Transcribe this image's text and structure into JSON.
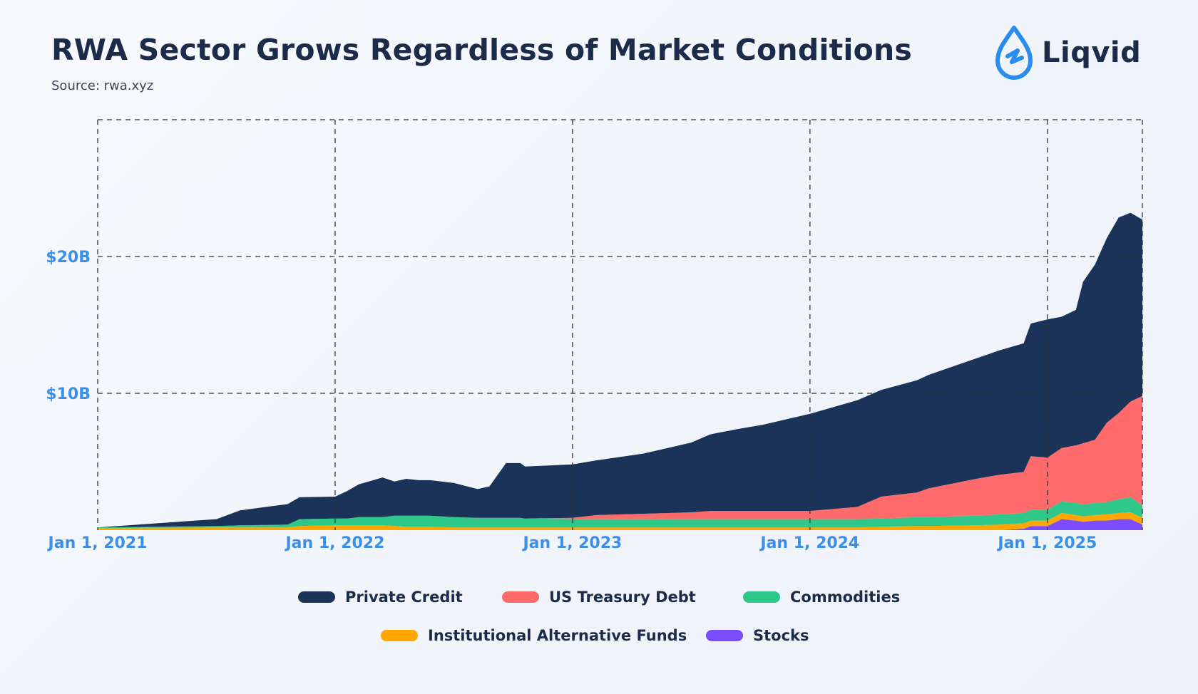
{
  "header": {
    "title": "RWA Sector Grows Regardless of Market Conditions",
    "subtitle": "Source: rwa.xyz",
    "brand": "Liqvid"
  },
  "colors": {
    "background": "#f4f7fb",
    "title": "#1c2b4a",
    "axis_label": "#3b8fe8",
    "brand_blue": "#2b8cf0",
    "grid": "#333333"
  },
  "icons": {
    "logo": "droplet-icon"
  },
  "chart_data": {
    "type": "area",
    "stacked": true,
    "title": "RWA Sector Grows Regardless of Market Conditions",
    "xlabel": "",
    "ylabel": "",
    "grid": true,
    "legend_placement": "bottom",
    "x_ticks": [
      "Jan 1, 2021",
      "Jan 1, 2022",
      "Jan 1, 2023",
      "Jan 1, 2024",
      "Jan 1, 2025"
    ],
    "y_ticks": [
      {
        "value": 10,
        "label": "$10B"
      },
      {
        "value": 20,
        "label": "$20B"
      }
    ],
    "xlim": [
      2021.0,
      2025.4
    ],
    "ylim": [
      0,
      30
    ],
    "x_unit": "year",
    "y_unit": "billion USD",
    "x": [
      2021.0,
      2021.5,
      2021.6,
      2021.8,
      2021.85,
      2022.0,
      2022.05,
      2022.1,
      2022.2,
      2022.25,
      2022.3,
      2022.35,
      2022.4,
      2022.5,
      2022.6,
      2022.65,
      2022.72,
      2022.78,
      2022.8,
      2023.0,
      2023.1,
      2023.3,
      2023.5,
      2023.58,
      2023.7,
      2023.8,
      2024.0,
      2024.2,
      2024.3,
      2024.45,
      2024.5,
      2024.7,
      2024.8,
      2024.9,
      2024.93,
      2025.0,
      2025.06,
      2025.12,
      2025.15,
      2025.2,
      2025.25,
      2025.3,
      2025.35,
      2025.4
    ],
    "series": [
      {
        "name": "Stocks",
        "color": "#7c4dff",
        "values": [
          0,
          0,
          0,
          0,
          0,
          0,
          0,
          0,
          0,
          0,
          0,
          0,
          0,
          0,
          0,
          0,
          0,
          0,
          0,
          0,
          0,
          0,
          0,
          0,
          0,
          0,
          0,
          0,
          0,
          0,
          0,
          0,
          0,
          0.1,
          0.3,
          0.3,
          0.8,
          0.7,
          0.6,
          0.7,
          0.7,
          0.8,
          0.8,
          0.4
        ]
      },
      {
        "name": "Institutional Alternative Funds",
        "color": "#ffa600",
        "values": [
          0.15,
          0.2,
          0.2,
          0.2,
          0.3,
          0.35,
          0.35,
          0.35,
          0.35,
          0.3,
          0.25,
          0.25,
          0.25,
          0.2,
          0.2,
          0.2,
          0.2,
          0.2,
          0.2,
          0.2,
          0.2,
          0.2,
          0.2,
          0.2,
          0.2,
          0.2,
          0.2,
          0.2,
          0.25,
          0.3,
          0.3,
          0.35,
          0.4,
          0.4,
          0.4,
          0.4,
          0.45,
          0.4,
          0.4,
          0.4,
          0.45,
          0.45,
          0.5,
          0.5
        ]
      },
      {
        "name": "Commodities",
        "color": "#2ec98a",
        "values": [
          0.05,
          0.1,
          0.15,
          0.2,
          0.5,
          0.5,
          0.5,
          0.6,
          0.6,
          0.75,
          0.8,
          0.8,
          0.8,
          0.75,
          0.7,
          0.7,
          0.7,
          0.7,
          0.65,
          0.6,
          0.6,
          0.6,
          0.6,
          0.6,
          0.6,
          0.6,
          0.6,
          0.6,
          0.6,
          0.65,
          0.65,
          0.7,
          0.75,
          0.75,
          0.8,
          0.8,
          0.85,
          0.9,
          0.85,
          0.9,
          0.9,
          1.0,
          1.1,
          0.9
        ]
      },
      {
        "name": "US Treasury Debt",
        "color": "#ff6b6b",
        "values": [
          0,
          0,
          0,
          0,
          0,
          0,
          0,
          0,
          0,
          0,
          0,
          0,
          0,
          0,
          0,
          0,
          0,
          0,
          0,
          0.1,
          0.3,
          0.4,
          0.5,
          0.6,
          0.6,
          0.6,
          0.6,
          0.9,
          1.6,
          1.8,
          2.1,
          2.7,
          2.9,
          3.0,
          3.9,
          3.8,
          3.9,
          4.2,
          4.5,
          4.6,
          5.8,
          6.3,
          7.0,
          8.0
        ]
      },
      {
        "name": "Private Credit",
        "color": "#1b3358",
        "values": [
          0.0,
          0.5,
          1.1,
          1.5,
          1.6,
          1.6,
          2.0,
          2.4,
          2.9,
          2.5,
          2.7,
          2.6,
          2.6,
          2.5,
          2.1,
          2.3,
          4.0,
          4.0,
          3.8,
          3.9,
          4.0,
          4.4,
          5.1,
          5.6,
          6.0,
          6.3,
          7.1,
          7.8,
          7.8,
          8.2,
          8.3,
          8.8,
          9.1,
          9.4,
          9.7,
          10.1,
          9.6,
          9.9,
          11.8,
          12.8,
          13.5,
          14.3,
          13.8,
          12.9
        ]
      }
    ]
  },
  "legend": [
    {
      "label": "Private Credit",
      "color": "#1b3358"
    },
    {
      "label": "US Treasury Debt",
      "color": "#ff6b6b"
    },
    {
      "label": "Commodities",
      "color": "#2ec98a"
    },
    {
      "label": "Institutional Alternative Funds",
      "color": "#ffa600"
    },
    {
      "label": "Stocks",
      "color": "#7c4dff"
    }
  ]
}
